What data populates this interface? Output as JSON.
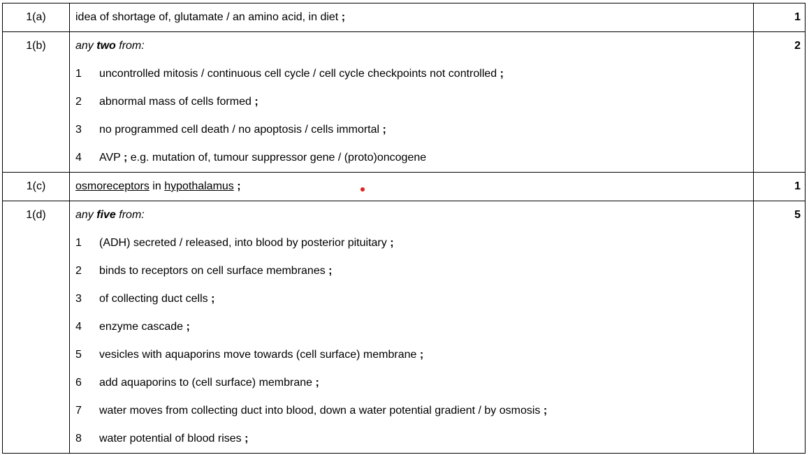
{
  "rows": [
    {
      "question": "1(a)",
      "marks": "1",
      "answer_pre": "idea of shortage of, glutamate / an amino acid, in diet",
      "semi": ";"
    },
    {
      "question": "1(b)",
      "marks": "2",
      "intro_pre": "any",
      "intro_bold": "two",
      "intro_post": "from:",
      "points": [
        {
          "n": "1",
          "text": "uncontrolled mitosis / continuous cell cycle / cell cycle checkpoints not controlled",
          "semi": ";"
        },
        {
          "n": "2",
          "text": "abnormal mass of cells formed",
          "semi": ";"
        },
        {
          "n": "3",
          "text": "no programmed cell death / no apoptosis / cells immortal",
          "semi": ";"
        },
        {
          "n": "4",
          "text": "AVP",
          "semi": ";",
          "extra": "e.g. mutation of, tumour suppressor gene / (proto)oncogene"
        }
      ]
    },
    {
      "question": "1(c)",
      "marks": "1",
      "u1": "osmoreceptors",
      "mid": "in",
      "u2": "hypothalamus",
      "semi": ";"
    },
    {
      "question": "1(d)",
      "marks": "5",
      "intro_pre": "any",
      "intro_bold": "five",
      "intro_post": "from:",
      "points": [
        {
          "n": "1",
          "text": "(ADH) secreted / released, into blood by posterior pituitary",
          "semi": ";"
        },
        {
          "n": "2",
          "text": "binds to receptors on cell surface membranes",
          "semi": ";"
        },
        {
          "n": "3",
          "text": "of collecting duct cells",
          "semi": ";"
        },
        {
          "n": "4",
          "text": "enzyme cascade",
          "semi": ";"
        },
        {
          "n": "5",
          "text": "vesicles with aquaporins move towards (cell surface) membrane",
          "semi": ";"
        },
        {
          "n": "6",
          "text": "add aquaporins to (cell surface) membrane",
          "semi": ";"
        },
        {
          "n": "7",
          "text": "water moves from collecting duct into blood, down a water potential gradient / by osmosis",
          "semi": ";"
        },
        {
          "n": "8",
          "text": "water potential of blood rises",
          "semi": ";"
        }
      ]
    }
  ]
}
